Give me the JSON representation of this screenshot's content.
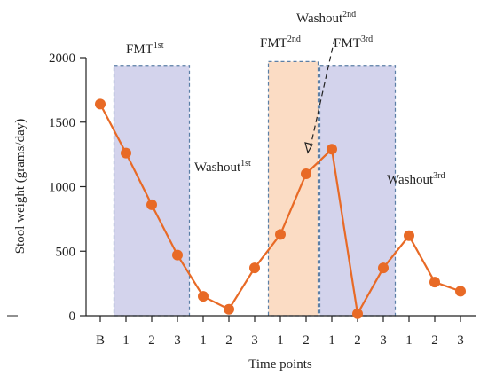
{
  "colors": {
    "line": "#E86A26",
    "fmt_band_fill": "#D3D3EC",
    "fmt2_band_fill": "#FBDCC4",
    "band_border": "#5B7FA6",
    "axis": "#222222"
  },
  "chart_data": {
    "type": "line",
    "xlabel": "Time points",
    "ylabel": "Stool weight (grams/day)",
    "ylim": [
      0,
      2000
    ],
    "yticks": [
      "0",
      "500",
      "1000",
      "1500",
      "2000"
    ],
    "categories": [
      "B",
      "1",
      "2",
      "3",
      "1",
      "2",
      "3",
      "1",
      "2",
      "1",
      "2",
      "3",
      "1",
      "2",
      "3"
    ],
    "values": [
      1640,
      1260,
      860,
      470,
      150,
      50,
      370,
      630,
      1100,
      1290,
      15,
      370,
      620,
      260,
      190
    ],
    "bands": [
      {
        "label": "FMT",
        "sup": "1st",
        "from": 1,
        "to": 3,
        "top": 1940
      },
      {
        "label": "FMT",
        "sup": "2nd",
        "from": 7,
        "to": 8,
        "top": 1970
      },
      {
        "label": "FMT",
        "sup": "3rd",
        "from": 9,
        "to": 11,
        "top": 1940
      }
    ],
    "annotations": [
      {
        "label": "Washout",
        "sup": "1st"
      },
      {
        "label": "Washout",
        "sup": "2nd"
      },
      {
        "label": "Washout",
        "sup": "3rd"
      }
    ]
  }
}
